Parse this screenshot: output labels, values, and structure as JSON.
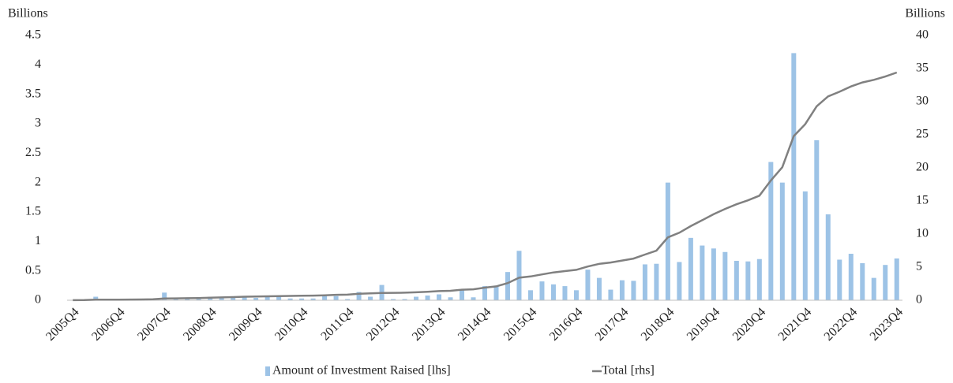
{
  "chart_data": {
    "type": "bar",
    "y_label": "Billions",
    "y2_label": "Billions",
    "categories": [
      "2005Q4",
      null,
      null,
      null,
      "2006Q4",
      null,
      null,
      null,
      "2007Q4",
      null,
      null,
      null,
      "2008Q4",
      null,
      null,
      null,
      "2009Q4",
      null,
      null,
      null,
      "2010Q4",
      null,
      null,
      null,
      "2011Q4",
      null,
      null,
      null,
      "2012Q4",
      null,
      null,
      null,
      "2013Q4",
      null,
      null,
      null,
      "2014Q4",
      null,
      null,
      null,
      "2015Q4",
      null,
      null,
      null,
      "2016Q4",
      null,
      null,
      null,
      "2017Q4",
      null,
      null,
      null,
      "2018Q4",
      null,
      null,
      null,
      "2019Q4",
      null,
      null,
      null,
      "2020Q4",
      null,
      null,
      null,
      "2021Q4",
      null,
      null,
      null,
      "2022Q4",
      null,
      null,
      null,
      "2023Q4"
    ],
    "series": [
      {
        "name": "Amount of Investment Raised [lhs]",
        "type": "bar",
        "axis": "y",
        "color": "#9dc3e6",
        "values": [
          0.005,
          0.005,
          0.06,
          0.01,
          0.01,
          0.01,
          0.01,
          0.02,
          0.13,
          0.02,
          0.02,
          0.02,
          0.06,
          0.04,
          0.05,
          0.05,
          0.04,
          0.06,
          0.06,
          0.03,
          0.03,
          0.03,
          0.07,
          0.07,
          0.02,
          0.14,
          0.06,
          0.26,
          0.02,
          0.02,
          0.06,
          0.08,
          0.1,
          0.05,
          0.18,
          0.05,
          0.24,
          0.24,
          0.48,
          0.84,
          0.17,
          0.32,
          0.27,
          0.24,
          0.17,
          0.52,
          0.38,
          0.18,
          0.34,
          0.33,
          0.61,
          0.62,
          2.0,
          0.65,
          1.06,
          0.93,
          0.88,
          0.82,
          0.67,
          0.66,
          0.7,
          2.35,
          2.0,
          4.2,
          1.85,
          2.72,
          1.46,
          0.69,
          0.79,
          0.63,
          0.38,
          0.6,
          0.71
        ]
      },
      {
        "name": "Total [rhs]",
        "type": "line",
        "axis": "y2",
        "color": "#808080",
        "values": [
          0.01,
          0.02,
          0.08,
          0.09,
          0.1,
          0.11,
          0.12,
          0.14,
          0.27,
          0.29,
          0.31,
          0.33,
          0.39,
          0.43,
          0.48,
          0.53,
          0.57,
          0.6,
          0.63,
          0.66,
          0.68,
          0.7,
          0.75,
          0.82,
          0.84,
          0.98,
          1.04,
          1.1,
          1.12,
          1.14,
          1.2,
          1.28,
          1.38,
          1.43,
          1.6,
          1.65,
          1.9,
          2.1,
          2.6,
          3.4,
          3.6,
          3.9,
          4.2,
          4.4,
          4.6,
          5.1,
          5.5,
          5.7,
          6.0,
          6.3,
          6.9,
          7.5,
          9.5,
          10.2,
          11.2,
          12.1,
          13.0,
          13.8,
          14.5,
          15.1,
          15.8,
          18.1,
          20.1,
          24.8,
          26.6,
          29.3,
          30.8,
          31.5,
          32.3,
          32.9,
          33.3,
          33.8,
          34.4
        ]
      }
    ],
    "ylim": [
      0,
      4.5
    ],
    "yticks": [
      0,
      0.5,
      1,
      1.5,
      2,
      2.5,
      3,
      3.5,
      4,
      4.5
    ],
    "y2lim": [
      0,
      40
    ],
    "y2ticks": [
      0,
      5,
      10,
      15,
      20,
      25,
      30,
      35,
      40
    ],
    "grid": false,
    "legend": "bottom"
  }
}
